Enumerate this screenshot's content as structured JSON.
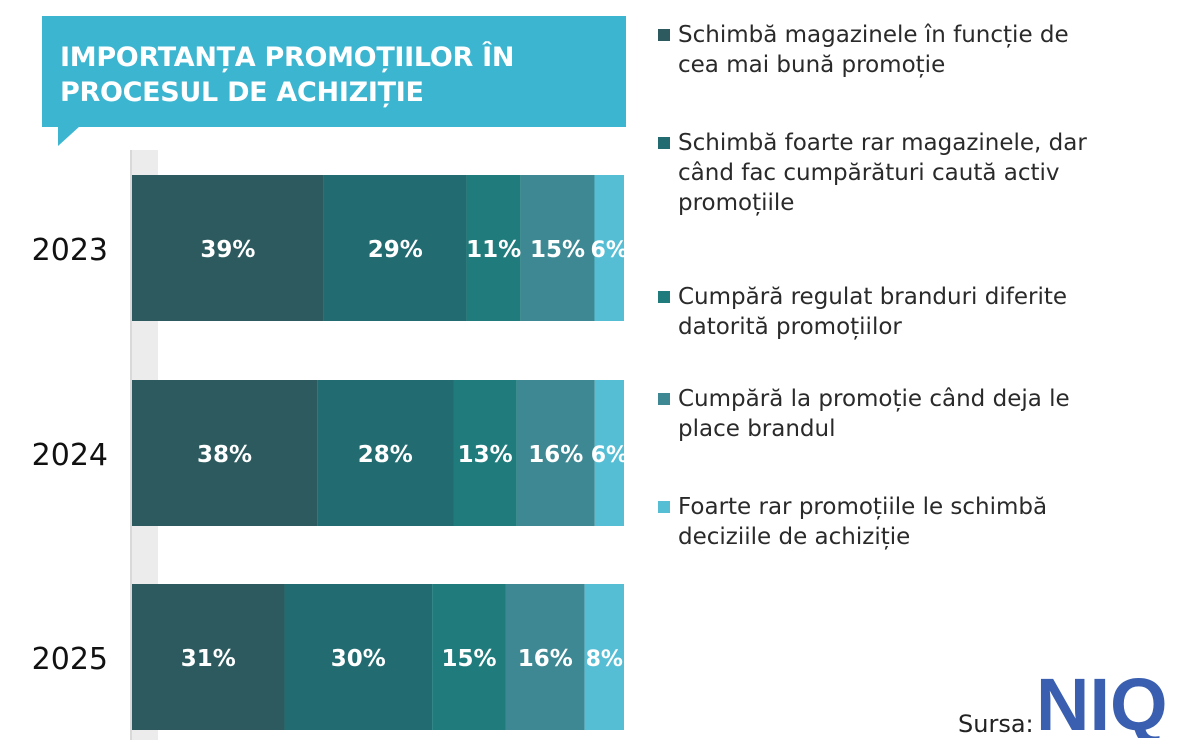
{
  "title": "IMPORTANȚA PROMOȚIILOR ÎN PROCESUL DE ACHIZIȚIE",
  "source_label": "Sursa:",
  "logo_text": "NIQ",
  "colors": {
    "title_bg": "#3cb5d1",
    "logo": "#3a5fb0",
    "series": [
      "#2c5a5e",
      "#226b70",
      "#1f7b7c",
      "#3e8893",
      "#56bed4"
    ]
  },
  "chart_data": {
    "type": "bar",
    "orientation": "horizontal",
    "stacked": true,
    "title": "IMPORTANȚA PROMOȚIILOR ÎN PROCESUL DE ACHIZIȚIE",
    "categories": [
      "2023",
      "2024",
      "2025"
    ],
    "series": [
      {
        "name": "Schimbă magazinele în funcție de cea mai bună promoție",
        "values": [
          39,
          38,
          31
        ]
      },
      {
        "name": "Schimbă foarte rar magazinele, dar când fac cumpărături caută activ promoțiile",
        "values": [
          29,
          28,
          30
        ]
      },
      {
        "name": "Cumpără regulat branduri diferite datorită promoțiilor",
        "values": [
          11,
          13,
          15
        ]
      },
      {
        "name": "Cumpără la promoție când deja le place brandul",
        "values": [
          15,
          16,
          16
        ]
      },
      {
        "name": "Foarte rar promoțiile le schimbă deciziile de achiziție",
        "values": [
          6,
          6,
          8
        ]
      }
    ],
    "value_format": "percent",
    "legend_position": "right"
  }
}
